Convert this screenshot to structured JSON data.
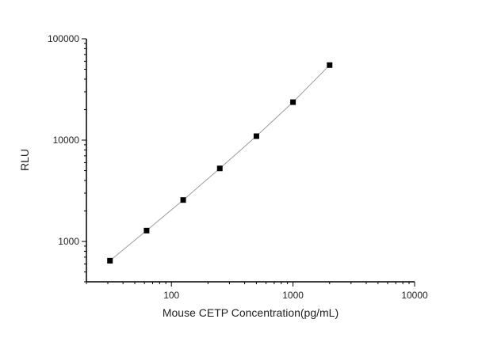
{
  "chart_data": {
    "type": "line",
    "xlabel": "Mouse CETP Concentration(pg/mL)",
    "ylabel": "RLU",
    "x_scale": "log",
    "y_scale": "log",
    "xlim": [
      20,
      10000
    ],
    "ylim": [
      400,
      100000
    ],
    "x_ticks": [
      100,
      1000,
      10000
    ],
    "x_tick_labels": [
      "100",
      "1000",
      "10000"
    ],
    "y_ticks": [
      1000,
      10000,
      100000
    ],
    "y_tick_labels": [
      "1000",
      "10000",
      "100000"
    ],
    "grid": false,
    "marker": "square",
    "colors": {
      "line": "#9a9a9a",
      "marker": "#000000",
      "axis": "#000000"
    },
    "series": [
      {
        "x": [
          31.25,
          62.5,
          125,
          250,
          500,
          1000,
          2000
        ],
        "y": [
          646,
          1280,
          2565,
          5260,
          10940,
          23700,
          55000
        ]
      }
    ]
  }
}
